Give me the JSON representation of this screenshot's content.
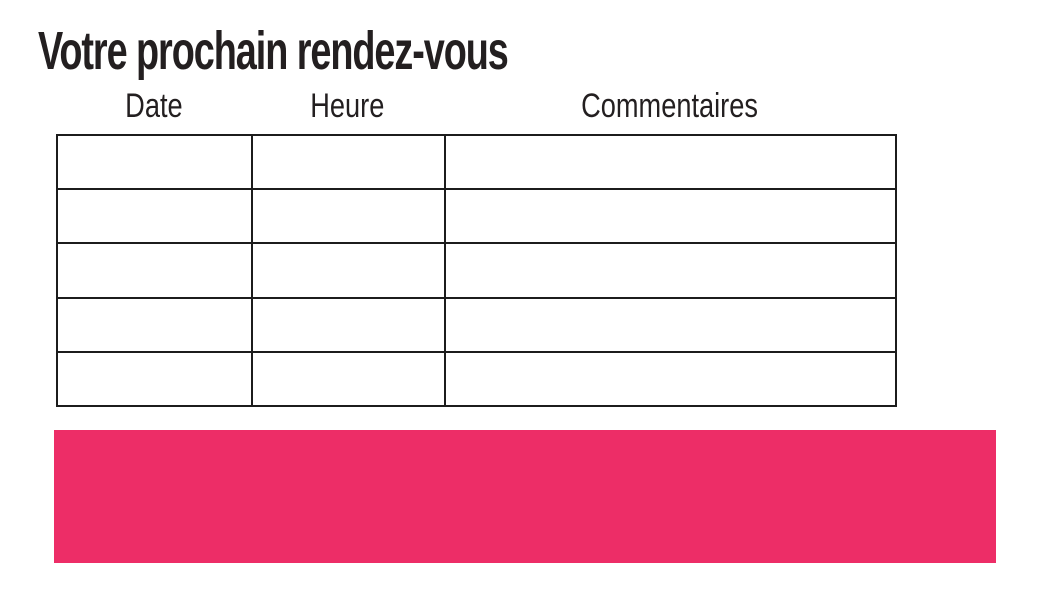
{
  "page": {
    "title": "Votre prochain rendez-vous"
  },
  "table": {
    "headers": [
      "Date",
      "Heure",
      "Commentaires"
    ],
    "rows": [
      {
        "date": "",
        "heure": "",
        "commentaires": ""
      },
      {
        "date": "",
        "heure": "",
        "commentaires": ""
      },
      {
        "date": "",
        "heure": "",
        "commentaires": ""
      },
      {
        "date": "",
        "heure": "",
        "commentaires": ""
      },
      {
        "date": "",
        "heure": "",
        "commentaires": ""
      }
    ]
  },
  "banner": {
    "text": "",
    "color": "#ED2D67"
  },
  "colors": {
    "text_primary": "#231F20",
    "table_border": "#1C1C1C",
    "background": "#FFFFFF",
    "accent_pink": "#ED2D67"
  }
}
